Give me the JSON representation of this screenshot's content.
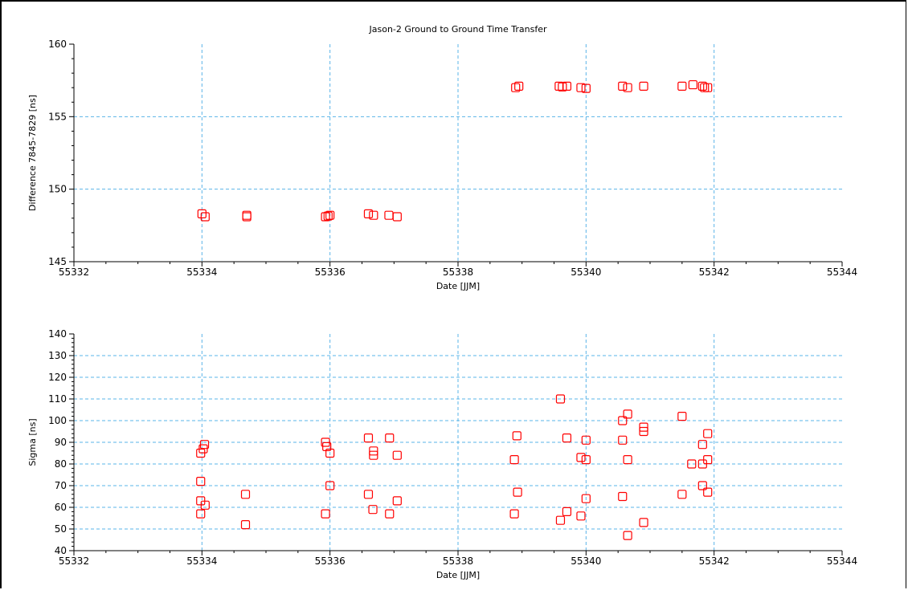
{
  "chart_data": [
    {
      "type": "scatter",
      "title": "Jason-2 Ground to Ground Time Transfer",
      "xlabel": "Date [JJM]",
      "ylabel": "Difference 7845-7829 [ns]",
      "xlim": [
        55332,
        55344
      ],
      "ylim": [
        145,
        160
      ],
      "xticks": [
        55332,
        55334,
        55336,
        55338,
        55340,
        55342,
        55344
      ],
      "yticks": [
        145,
        150,
        155,
        160
      ],
      "grid": true,
      "marker": "open-square",
      "color": "#ff0000",
      "grid_color": "#5ab4e8",
      "points": [
        [
          55334.0,
          148.3
        ],
        [
          55334.05,
          148.1
        ],
        [
          55334.7,
          148.2
        ],
        [
          55334.7,
          148.1
        ],
        [
          55335.93,
          148.1
        ],
        [
          55336.0,
          148.2
        ],
        [
          55335.97,
          148.15
        ],
        [
          55336.6,
          148.3
        ],
        [
          55336.68,
          148.2
        ],
        [
          55336.92,
          148.2
        ],
        [
          55337.05,
          148.1
        ],
        [
          55338.9,
          157.0
        ],
        [
          55338.95,
          157.1
        ],
        [
          55339.58,
          157.1
        ],
        [
          55339.7,
          157.1
        ],
        [
          55339.63,
          157.05
        ],
        [
          55339.92,
          157.0
        ],
        [
          55340.0,
          156.95
        ],
        [
          55340.57,
          157.1
        ],
        [
          55340.65,
          157.0
        ],
        [
          55340.9,
          157.1
        ],
        [
          55341.5,
          157.1
        ],
        [
          55341.67,
          157.2
        ],
        [
          55341.82,
          157.1
        ],
        [
          55341.85,
          157.0
        ],
        [
          55341.9,
          157.0
        ]
      ]
    },
    {
      "type": "scatter",
      "title": "",
      "xlabel": "Date [JJM]",
      "ylabel": "Sigma [ns]",
      "xlim": [
        55332,
        55344
      ],
      "ylim": [
        40,
        140
      ],
      "xticks": [
        55332,
        55334,
        55336,
        55338,
        55340,
        55342,
        55344
      ],
      "yticks": [
        40,
        50,
        60,
        70,
        80,
        90,
        100,
        110,
        120,
        130,
        140
      ],
      "grid": true,
      "marker": "open-square",
      "color": "#ff0000",
      "grid_color": "#5ab4e8",
      "points": [
        [
          55333.98,
          85
        ],
        [
          55334.04,
          89
        ],
        [
          55334.02,
          87
        ],
        [
          55333.98,
          72
        ],
        [
          55333.98,
          63
        ],
        [
          55333.98,
          57
        ],
        [
          55334.05,
          61
        ],
        [
          55334.68,
          66
        ],
        [
          55334.68,
          52
        ],
        [
          55335.93,
          90
        ],
        [
          55335.95,
          88
        ],
        [
          55336.0,
          85
        ],
        [
          55336.0,
          70
        ],
        [
          55335.93,
          57
        ],
        [
          55336.6,
          92
        ],
        [
          55336.68,
          86
        ],
        [
          55336.68,
          84
        ],
        [
          55336.93,
          92
        ],
        [
          55337.05,
          84
        ],
        [
          55336.6,
          66
        ],
        [
          55336.67,
          59
        ],
        [
          55336.93,
          57
        ],
        [
          55337.05,
          63
        ],
        [
          55338.92,
          93
        ],
        [
          55338.88,
          82
        ],
        [
          55338.93,
          67
        ],
        [
          55338.88,
          57
        ],
        [
          55339.6,
          110
        ],
        [
          55339.7,
          92
        ],
        [
          55339.92,
          83
        ],
        [
          55340.0,
          91
        ],
        [
          55340.0,
          82
        ],
        [
          55339.7,
          58
        ],
        [
          55339.6,
          54
        ],
        [
          55339.92,
          56
        ],
        [
          55340.0,
          64
        ],
        [
          55340.57,
          100
        ],
        [
          55340.65,
          103
        ],
        [
          55340.9,
          97
        ],
        [
          55340.9,
          95
        ],
        [
          55340.57,
          91
        ],
        [
          55340.65,
          82
        ],
        [
          55340.57,
          65
        ],
        [
          55340.65,
          47
        ],
        [
          55340.9,
          53
        ],
        [
          55341.5,
          102
        ],
        [
          55341.65,
          80
        ],
        [
          55341.82,
          89
        ],
        [
          55341.82,
          80
        ],
        [
          55341.9,
          94
        ],
        [
          55341.9,
          82
        ],
        [
          55341.5,
          66
        ],
        [
          55341.82,
          70
        ],
        [
          55341.9,
          67
        ]
      ]
    }
  ]
}
